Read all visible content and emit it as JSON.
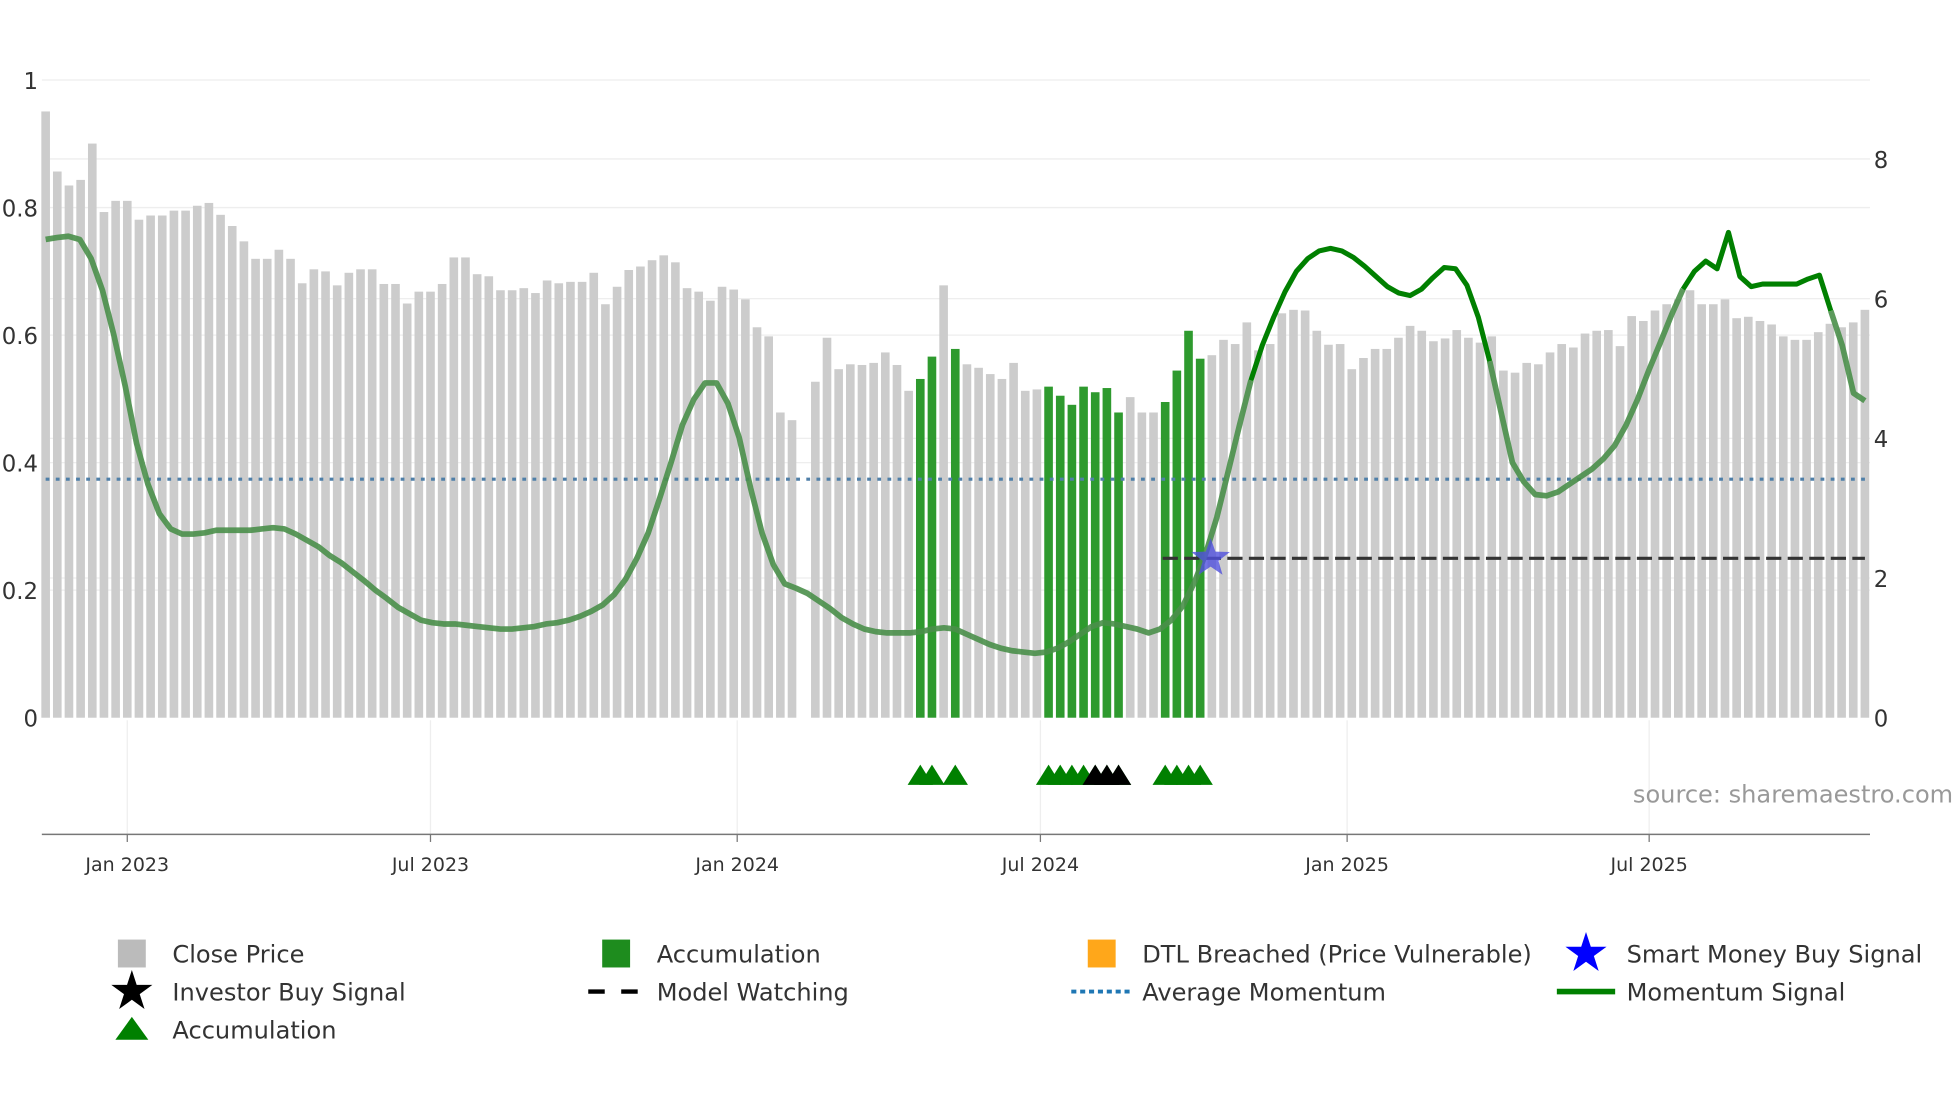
{
  "chart_data": {
    "type": "bar",
    "title": "",
    "source": "source: sharemaestro.com",
    "left_axis": {
      "ticks": [
        "0",
        "0.2",
        "0.4",
        "0.6",
        "0.8",
        "1"
      ],
      "range": [
        0,
        1
      ]
    },
    "right_axis": {
      "ticks": [
        "0",
        "2",
        "4",
        "6",
        "8"
      ],
      "range": [
        0,
        9.13
      ]
    },
    "x_ticks": [
      {
        "label": "Jan 2023",
        "week": 7
      },
      {
        "label": "Jul 2023",
        "week": 33
      },
      {
        "label": "Jan 2024",
        "week": 59.3
      },
      {
        "label": "Jul 2024",
        "week": 85.3
      },
      {
        "label": "Jan 2025",
        "week": 111.6
      },
      {
        "label": "Jul 2025",
        "week": 137.5
      }
    ],
    "close_price": [
      8.68,
      7.82,
      7.62,
      7.7,
      8.22,
      7.24,
      7.4,
      7.4,
      7.13,
      7.19,
      7.19,
      7.26,
      7.26,
      7.33,
      7.37,
      7.2,
      7.04,
      6.82,
      6.57,
      6.57,
      6.7,
      6.57,
      6.22,
      6.42,
      6.39,
      6.19,
      6.37,
      6.42,
      6.42,
      6.21,
      6.21,
      5.93,
      6.1,
      6.1,
      6.21,
      6.59,
      6.59,
      6.35,
      6.32,
      6.12,
      6.12,
      6.15,
      6.08,
      6.26,
      6.22,
      6.24,
      6.24,
      6.37,
      5.92,
      6.17,
      6.41,
      6.46,
      6.55,
      6.62,
      6.52,
      6.15,
      6.1,
      5.97,
      6.17,
      6.13,
      5.99,
      5.59,
      5.46,
      4.37,
      4.26,
      null,
      4.81,
      5.44,
      4.99,
      5.06,
      5.05,
      5.08,
      5.23,
      5.05,
      4.68,
      4.85,
      5.17,
      6.19,
      5.28,
      5.06,
      5.01,
      4.92,
      4.85,
      5.08,
      4.68,
      4.7,
      4.74,
      4.61,
      4.48,
      4.74,
      4.66,
      4.72,
      4.37,
      4.59,
      4.37,
      4.37,
      4.52,
      4.97,
      5.54,
      5.14,
      5.19,
      5.41,
      5.35,
      5.66,
      5.26,
      5.35,
      5.79,
      5.84,
      5.83,
      5.54,
      5.34,
      5.35,
      4.99,
      5.15,
      5.28,
      5.28,
      5.44,
      5.61,
      5.54,
      5.39,
      5.43,
      5.55,
      5.44,
      5.37,
      5.46,
      4.97,
      4.94,
      5.08,
      5.06,
      5.23,
      5.35,
      5.3,
      5.5,
      5.54,
      5.55,
      5.32,
      5.75,
      5.68,
      5.83,
      5.92,
      5.99,
      6.12,
      5.92,
      5.92,
      5.99,
      5.72,
      5.74,
      5.68,
      5.63,
      5.46,
      5.41,
      5.41,
      5.52,
      5.64,
      5.59,
      5.66,
      5.84
    ],
    "accumulation_weeks": [
      75,
      76,
      78,
      86,
      87,
      88,
      89,
      90,
      91,
      92,
      96,
      97,
      98,
      99
    ],
    "investor_buy_weeks": [
      90,
      91,
      92
    ],
    "momentum_signal": [
      0.75,
      0.753,
      0.755,
      0.75,
      0.72,
      0.67,
      0.6,
      0.52,
      0.43,
      0.366,
      0.32,
      0.296,
      0.288,
      0.288,
      0.29,
      0.294,
      0.294,
      0.294,
      0.294,
      0.296,
      0.298,
      0.296,
      0.288,
      0.278,
      0.268,
      0.254,
      0.243,
      0.229,
      0.215,
      0.2,
      0.187,
      0.173,
      0.163,
      0.153,
      0.149,
      0.147,
      0.147,
      0.145,
      0.143,
      0.141,
      0.139,
      0.139,
      0.141,
      0.143,
      0.147,
      0.149,
      0.153,
      0.159,
      0.167,
      0.177,
      0.193,
      0.217,
      0.25,
      0.29,
      0.344,
      0.4,
      0.459,
      0.499,
      0.525,
      0.525,
      0.493,
      0.439,
      0.36,
      0.29,
      0.24,
      0.21,
      0.203,
      0.195,
      0.183,
      0.171,
      0.157,
      0.147,
      0.139,
      0.135,
      0.133,
      0.133,
      0.133,
      0.135,
      0.139,
      0.141,
      0.139,
      0.131,
      0.123,
      0.115,
      0.109,
      0.105,
      0.103,
      0.101,
      0.103,
      0.109,
      0.119,
      0.131,
      0.143,
      0.149,
      0.147,
      0.143,
      0.139,
      0.133,
      0.139,
      0.153,
      0.175,
      0.211,
      0.256,
      0.314,
      0.386,
      0.459,
      0.529,
      0.584,
      0.628,
      0.668,
      0.7,
      0.72,
      0.732,
      0.736,
      0.732,
      0.722,
      0.708,
      0.692,
      0.676,
      0.666,
      0.662,
      0.672,
      0.69,
      0.706,
      0.704,
      0.678,
      0.628,
      0.559,
      0.479,
      0.4,
      0.37,
      0.35,
      0.348,
      0.354,
      0.366,
      0.378,
      0.39,
      0.406,
      0.427,
      0.459,
      0.499,
      0.545,
      0.588,
      0.632,
      0.672,
      0.7,
      0.716,
      0.704,
      0.761,
      0.692,
      0.676,
      0.68,
      0.68,
      0.68,
      0.68,
      0.688,
      0.694,
      0.638,
      0.584,
      0.509,
      0.497
    ],
    "momentum_strong_segments": [
      [
        106,
        127
      ],
      [
        144,
        157
      ]
    ],
    "average_momentum": 0.374,
    "model_watching": {
      "level": 0.25,
      "from_week": 96,
      "to_week": 156
    },
    "smart_money_buy": {
      "week": 100,
      "level": 0.25
    },
    "legend": [
      {
        "label": "Close Price",
        "symbol": "square",
        "color": "#bbbbbb"
      },
      {
        "label": "Accumulation",
        "symbol": "square",
        "color": "#1e8c1e"
      },
      {
        "label": "DTL Breached (Price Vulnerable)",
        "symbol": "square",
        "color": "#ffa71a"
      },
      {
        "label": "Smart Money Buy Signal",
        "symbol": "star",
        "color": "#0000ff"
      },
      {
        "label": "Investor Buy Signal",
        "symbol": "star",
        "color": "#000000"
      },
      {
        "label": "Model Watching",
        "symbol": "dash",
        "color": "#000000"
      },
      {
        "label": "Average Momentum",
        "symbol": "dot",
        "color": "#1f77b4"
      },
      {
        "label": "Momentum Signal",
        "symbol": "line",
        "color": "#008000"
      },
      {
        "label": "Accumulation",
        "symbol": "triangle",
        "color": "#008000"
      }
    ],
    "colors": {
      "bar": "#cccccc",
      "accumulation": "#2e9a2e",
      "momentum_strong": "#008000",
      "momentum_weak": "#4a8f4a",
      "average": "#4f7fa8",
      "smart_money_star": "#5050dd"
    }
  }
}
